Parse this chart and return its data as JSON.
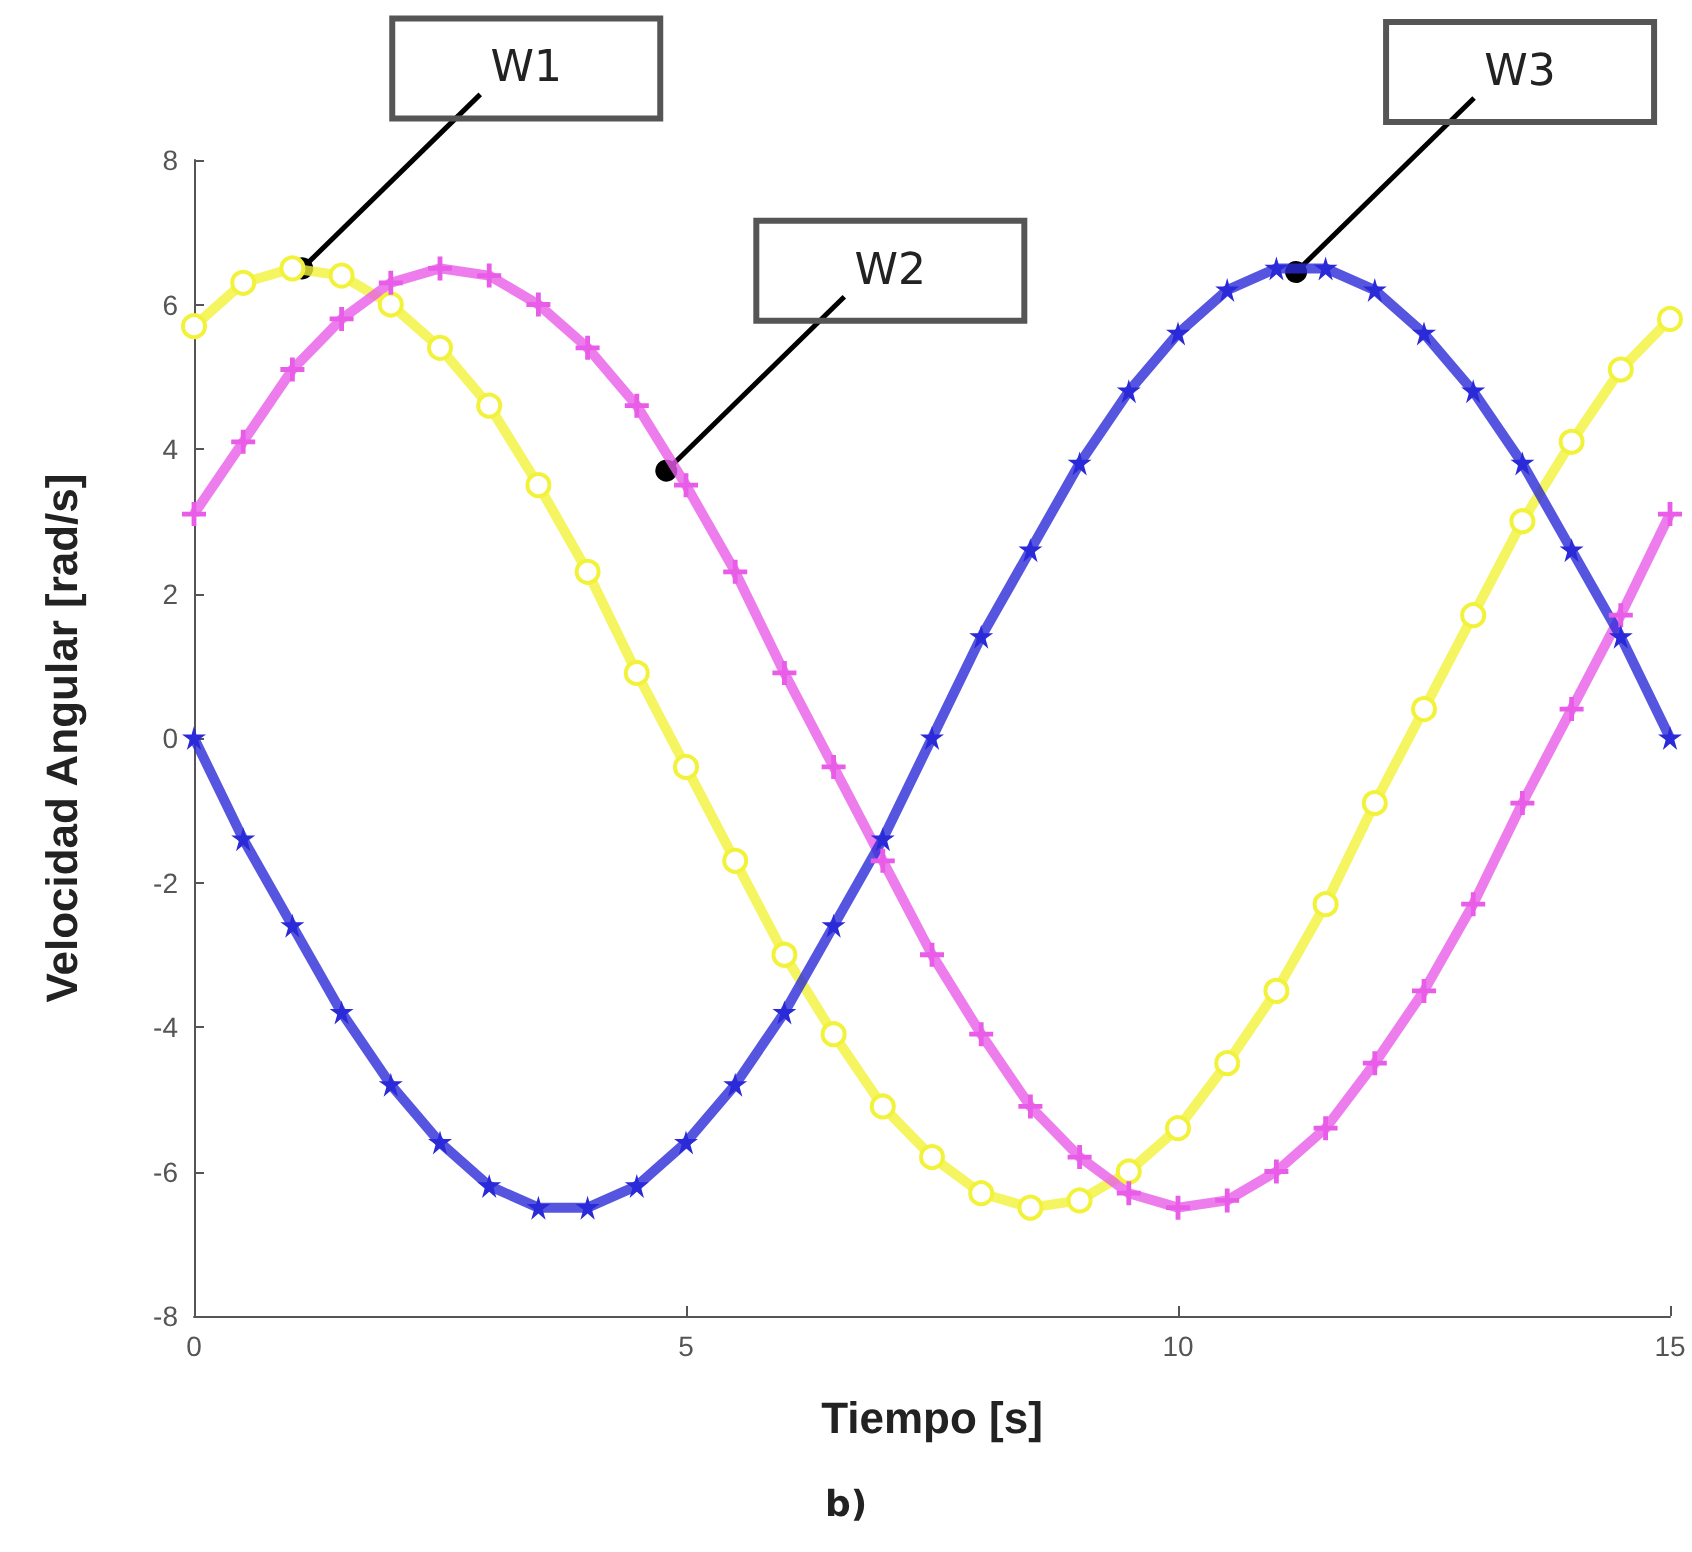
{
  "chart_data": {
    "type": "line",
    "xlabel": "Tiempo [s]",
    "ylabel": "Velocidad Angular [rad/s]",
    "x": [
      0,
      0.5,
      1,
      1.5,
      2,
      2.5,
      3,
      3.5,
      4,
      4.5,
      5,
      5.5,
      6,
      6.5,
      7,
      7.5,
      8,
      8.5,
      9,
      9.5,
      10,
      10.5,
      11,
      11.5,
      12,
      12.5,
      13,
      13.5,
      14,
      14.5,
      15
    ],
    "series": [
      {
        "color": "#f2f23a",
        "marker": "circle",
        "values": [
          5.7,
          6.3,
          6.5,
          6.4,
          6.0,
          5.4,
          4.6,
          3.5,
          2.3,
          0.9,
          -0.4,
          -1.7,
          -3.0,
          -4.1,
          -5.1,
          -5.8,
          -6.3,
          -6.5,
          -6.4,
          -6.0,
          -5.4,
          -4.5,
          -3.5,
          -2.3,
          -0.9,
          0.4,
          1.7,
          3.0,
          4.1,
          5.1,
          5.8
        ]
      },
      {
        "color": "#e85ce8",
        "marker": "cross",
        "values": [
          3.1,
          4.1,
          5.1,
          5.8,
          6.3,
          6.5,
          6.4,
          6.0,
          5.4,
          4.6,
          3.5,
          2.3,
          0.9,
          -0.4,
          -1.7,
          -3.0,
          -4.1,
          -5.1,
          -5.8,
          -6.3,
          -6.5,
          -6.4,
          -6.0,
          -5.4,
          -4.5,
          -3.5,
          -2.3,
          -0.9,
          0.4,
          1.7,
          3.1
        ]
      },
      {
        "color": "#2a2ad8",
        "marker": "star",
        "values": [
          0,
          -1.4,
          -2.6,
          -3.8,
          -4.8,
          -5.6,
          -6.2,
          -6.5,
          -6.5,
          -6.2,
          -5.6,
          -4.8,
          -3.8,
          -2.6,
          -1.4,
          0,
          1.4,
          2.6,
          3.8,
          4.8,
          5.6,
          6.2,
          6.5,
          6.5,
          6.2,
          5.6,
          4.8,
          3.8,
          2.6,
          1.4,
          0
        ]
      }
    ],
    "xlim": [
      0,
      15
    ],
    "xticks": [
      0,
      5,
      10,
      15
    ],
    "ylim": [
      -8,
      8
    ],
    "yticks": [
      -8,
      -6,
      -4,
      -2,
      0,
      2,
      4,
      6,
      8
    ],
    "grid": false,
    "annotations": [
      {
        "text": "W1",
        "x": 1.1,
        "y": 6.5
      },
      {
        "text": "W2",
        "x": 4.8,
        "y": 3.7
      },
      {
        "text": "W3",
        "x": 11.2,
        "y": 6.45
      },
      "b)"
    ]
  }
}
